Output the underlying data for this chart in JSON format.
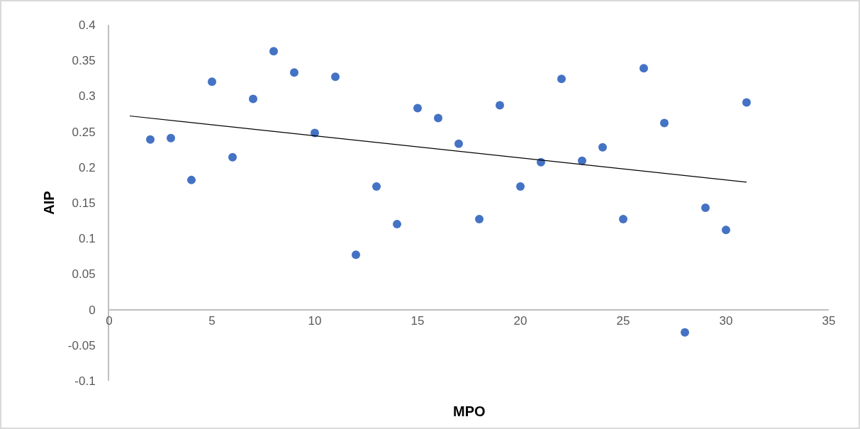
{
  "chart_data": {
    "type": "scatter",
    "xlabel": "MPO",
    "ylabel": "AIP",
    "x": [
      2,
      3,
      4,
      5,
      6,
      7,
      8,
      9,
      10,
      11,
      12,
      13,
      14,
      15,
      16,
      17,
      18,
      19,
      20,
      21,
      22,
      23,
      24,
      25,
      26,
      27,
      28,
      29,
      30,
      31
    ],
    "series": [
      {
        "color": "#4472c4",
        "marker": "circle",
        "values": [
          0.239,
          0.241,
          0.182,
          0.32,
          0.214,
          0.296,
          0.363,
          0.333,
          0.248,
          0.327,
          0.077,
          0.173,
          0.12,
          0.283,
          0.269,
          0.233,
          0.127,
          0.287,
          0.173,
          0.207,
          0.324,
          0.209,
          0.228,
          0.127,
          0.339,
          0.262,
          -0.032,
          0.143,
          0.112,
          0.291
        ]
      },
      {
        "type": "line",
        "color": "#000000",
        "line_style": "solid",
        "marker": "none",
        "x": [
          1,
          31
        ],
        "values": [
          0.272,
          0.179
        ]
      }
    ],
    "xlim": [
      0,
      35
    ],
    "xticks": [
      0,
      5,
      10,
      15,
      20,
      25,
      30,
      35
    ],
    "ylim": [
      -0.1,
      0.4
    ],
    "yticks": [
      -0.1,
      -0.05,
      0,
      0.05,
      0.1,
      0.15,
      0.2,
      0.25,
      0.3,
      0.35,
      0.4
    ],
    "grid": false
  }
}
